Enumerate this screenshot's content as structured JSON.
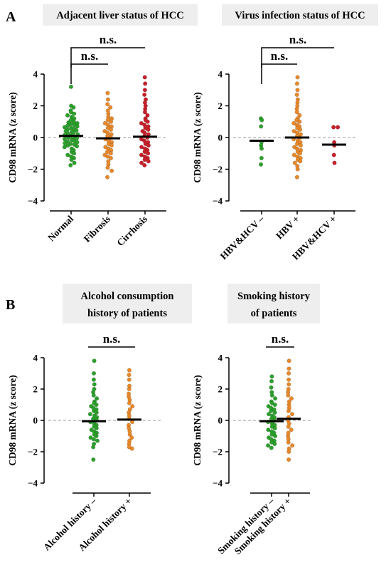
{
  "figure": {
    "panel_letters": [
      "A",
      "B"
    ]
  },
  "colors": {
    "green": "#2ca02c",
    "orange": "#e8892a",
    "red": "#c8202a",
    "title_box": "#eeeeee",
    "zero_line": "#999999"
  },
  "chart_data": [
    {
      "type": "scatter",
      "title": "Adjacent liver status of HCC",
      "ylabel": "CD98 mRNA (z score)",
      "ylim": [
        -4,
        4
      ],
      "yticks": [
        4,
        2,
        0,
        -2,
        -4
      ],
      "categories": [
        "Normal",
        "Fibrosis",
        "Cirrhosis"
      ],
      "medians": [
        0.1,
        -0.05,
        0.05
      ],
      "point_colors": [
        "green",
        "orange",
        "red"
      ],
      "significance": [
        {
          "from": "Normal",
          "to": "Fibrosis",
          "label": "n.s."
        },
        {
          "from": "Normal",
          "to": "Cirrhosis",
          "label": "n.s."
        }
      ],
      "series": [
        {
          "values": [
            3.2,
            2.0,
            1.9,
            1.7,
            1.6,
            1.5,
            1.4,
            1.3,
            1.2,
            1.1,
            1.0,
            0.95,
            0.9,
            0.85,
            0.8,
            0.75,
            0.7,
            0.65,
            0.6,
            0.55,
            0.5,
            0.45,
            0.4,
            0.35,
            0.3,
            0.25,
            0.2,
            0.15,
            0.1,
            0.05,
            0.0,
            -0.05,
            -0.1,
            -0.15,
            -0.2,
            -0.25,
            -0.3,
            -0.35,
            -0.4,
            -0.45,
            -0.5,
            -0.55,
            -0.6,
            -0.7,
            -0.8,
            -0.9,
            -1.0,
            -1.1,
            -1.2,
            -1.3,
            -1.4,
            -1.6,
            -1.75
          ]
        },
        {
          "values": [
            2.8,
            2.4,
            2.1,
            1.9,
            1.7,
            1.5,
            1.3,
            1.2,
            1.1,
            1.0,
            0.9,
            0.8,
            0.7,
            0.6,
            0.5,
            0.4,
            0.3,
            0.2,
            0.1,
            0.0,
            -0.1,
            -0.2,
            -0.3,
            -0.4,
            -0.5,
            -0.6,
            -0.7,
            -0.8,
            -0.9,
            -1.0,
            -1.1,
            -1.2,
            -1.3,
            -1.5,
            -1.7,
            -1.9,
            -2.1,
            -2.5
          ]
        },
        {
          "values": [
            3.8,
            3.4,
            3.0,
            2.7,
            2.4,
            2.2,
            2.0,
            1.8,
            1.6,
            1.4,
            1.2,
            1.1,
            1.0,
            0.9,
            0.8,
            0.7,
            0.6,
            0.5,
            0.4,
            0.3,
            0.2,
            0.1,
            0.0,
            -0.1,
            -0.2,
            -0.3,
            -0.4,
            -0.5,
            -0.6,
            -0.7,
            -0.8,
            -0.9,
            -1.0,
            -1.1,
            -1.2,
            -1.3,
            -1.4,
            -1.5,
            -1.6,
            -1.75
          ]
        }
      ]
    },
    {
      "type": "scatter",
      "title": "Virus infection status of HCC",
      "ylabel": "CD98 mRNA (z score)",
      "ylim": [
        -4,
        4
      ],
      "yticks": [
        4,
        2,
        0,
        -2,
        -4
      ],
      "categories": [
        "HBV&HCV –",
        "HBV +",
        "HBV&HCV +"
      ],
      "medians": [
        -0.2,
        0.0,
        -0.45
      ],
      "point_colors": [
        "green",
        "orange",
        "red"
      ],
      "significance": [
        {
          "from": "HBV&HCV –",
          "to": "HBV +",
          "label": "n.s."
        },
        {
          "from": "HBV&HCV –",
          "to": "HBV&HCV +",
          "label": "n.s."
        }
      ],
      "series": [
        {
          "values": [
            1.2,
            1.1,
            0.7,
            -0.3,
            -0.5,
            -0.7,
            -1.3,
            -1.7
          ]
        },
        {
          "values": [
            3.8,
            3.4,
            3.0,
            2.7,
            2.4,
            2.2,
            2.0,
            1.8,
            1.6,
            1.4,
            1.2,
            1.1,
            1.0,
            0.9,
            0.8,
            0.7,
            0.6,
            0.5,
            0.4,
            0.3,
            0.2,
            0.1,
            0.0,
            -0.1,
            -0.2,
            -0.3,
            -0.4,
            -0.5,
            -0.6,
            -0.7,
            -0.8,
            -0.9,
            -1.0,
            -1.1,
            -1.2,
            -1.3,
            -1.4,
            -1.5,
            -1.6,
            -1.8,
            -2.0,
            -2.5
          ]
        },
        {
          "values": [
            0.65,
            0.65,
            -0.3,
            -0.5,
            -1.1,
            -1.6
          ]
        }
      ]
    },
    {
      "type": "scatter",
      "title": "Alcohol consumption history of patients",
      "title_lines": [
        "Alcohol consumption",
        "history of patients"
      ],
      "ylabel": "CD98 mRNA (z score)",
      "ylim": [
        -4,
        4
      ],
      "yticks": [
        4,
        2,
        0,
        -2,
        -4
      ],
      "categories": [
        "Alcohol history –",
        "Alcohol history +"
      ],
      "medians": [
        -0.05,
        0.05
      ],
      "point_colors": [
        "green",
        "orange"
      ],
      "significance": [
        {
          "from": "Alcohol history –",
          "to": "Alcohol history +",
          "label": "n.s."
        }
      ],
      "series": [
        {
          "values": [
            3.8,
            3.0,
            2.6,
            2.3,
            2.0,
            1.8,
            1.6,
            1.4,
            1.2,
            1.1,
            1.0,
            0.9,
            0.8,
            0.7,
            0.6,
            0.5,
            0.4,
            0.3,
            0.2,
            0.1,
            0.0,
            -0.1,
            -0.2,
            -0.3,
            -0.4,
            -0.5,
            -0.6,
            -0.7,
            -0.8,
            -0.9,
            -1.0,
            -1.1,
            -1.2,
            -1.3,
            -1.5,
            -1.7,
            -2.5
          ]
        },
        {
          "values": [
            3.2,
            2.9,
            2.6,
            2.2,
            2.0,
            1.7,
            1.5,
            1.3,
            1.1,
            0.9,
            0.7,
            0.5,
            0.3,
            0.1,
            -0.1,
            -0.3,
            -0.5,
            -0.7,
            -0.9,
            -1.1,
            -1.3,
            -1.5,
            -1.7,
            -1.8
          ]
        }
      ]
    },
    {
      "type": "scatter",
      "title": "Smoking history of patients",
      "title_lines": [
        "Smoking history",
        "of patients"
      ],
      "ylabel": "CD98 mRNA (z score)",
      "ylim": [
        -4,
        4
      ],
      "yticks": [
        4,
        2,
        0,
        -2,
        -4
      ],
      "categories": [
        "Smoking history –",
        "Smoking history +"
      ],
      "medians": [
        -0.05,
        0.1
      ],
      "point_colors": [
        "green",
        "orange"
      ],
      "significance": [
        {
          "from": "Smoking history –",
          "to": "Smoking history +",
          "label": "n.s."
        }
      ],
      "series": [
        {
          "values": [
            2.8,
            2.5,
            2.1,
            1.8,
            1.6,
            1.4,
            1.2,
            1.1,
            1.0,
            0.9,
            0.8,
            0.7,
            0.6,
            0.5,
            0.4,
            0.3,
            0.2,
            0.1,
            0.0,
            -0.1,
            -0.2,
            -0.3,
            -0.4,
            -0.5,
            -0.6,
            -0.7,
            -0.8,
            -0.9,
            -1.0,
            -1.1,
            -1.2,
            -1.3,
            -1.4,
            -1.5,
            -1.6,
            -1.75
          ]
        },
        {
          "values": [
            3.8,
            3.3,
            3.0,
            2.6,
            2.3,
            2.0,
            1.8,
            1.6,
            1.4,
            1.2,
            1.0,
            0.8,
            0.6,
            0.4,
            0.2,
            0.0,
            -0.2,
            -0.4,
            -0.6,
            -0.8,
            -1.0,
            -1.2,
            -1.4,
            -1.6,
            -1.8,
            -2.0,
            -2.5
          ]
        }
      ]
    }
  ]
}
